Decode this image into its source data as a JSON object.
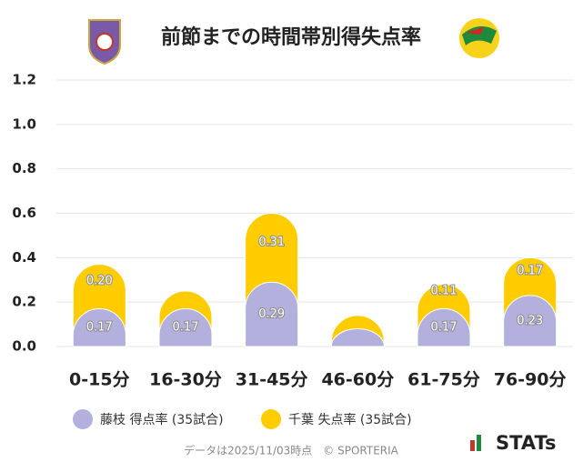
{
  "chart_data": {
    "type": "stacked-bar",
    "title": "前節までの時間帯別得失点率",
    "categories": [
      "0-15分",
      "16-30分",
      "31-45分",
      "46-60分",
      "61-75分",
      "76-90分"
    ],
    "series": [
      {
        "name": "藤枝 得点率 (35試合)",
        "color": "#b3b0de",
        "values": [
          0.17,
          0.17,
          0.29,
          0.08,
          0.17,
          0.23
        ],
        "value_labels": [
          "0.17",
          "0.17",
          "0.29",
          null,
          "0.17",
          "0.23"
        ]
      },
      {
        "name": "千葉 失点率 (35試合)",
        "color": "#ffcc00",
        "values": [
          0.2,
          0.08,
          0.31,
          0.06,
          0.11,
          0.17
        ],
        "value_labels": [
          "0.20",
          null,
          "0.31",
          null,
          "0.11",
          "0.17"
        ]
      }
    ],
    "ylim": [
      0,
      1.2
    ],
    "yticks": [
      {
        "value": 0,
        "label": "0.0"
      },
      0.2,
      0.4,
      0.6,
      0.8,
      {
        "value": 1,
        "label": "1.0"
      },
      1.2
    ],
    "grid": true
  },
  "footer": "データは2025/11/03時点　© SPORTERIA",
  "brand": "STATs"
}
